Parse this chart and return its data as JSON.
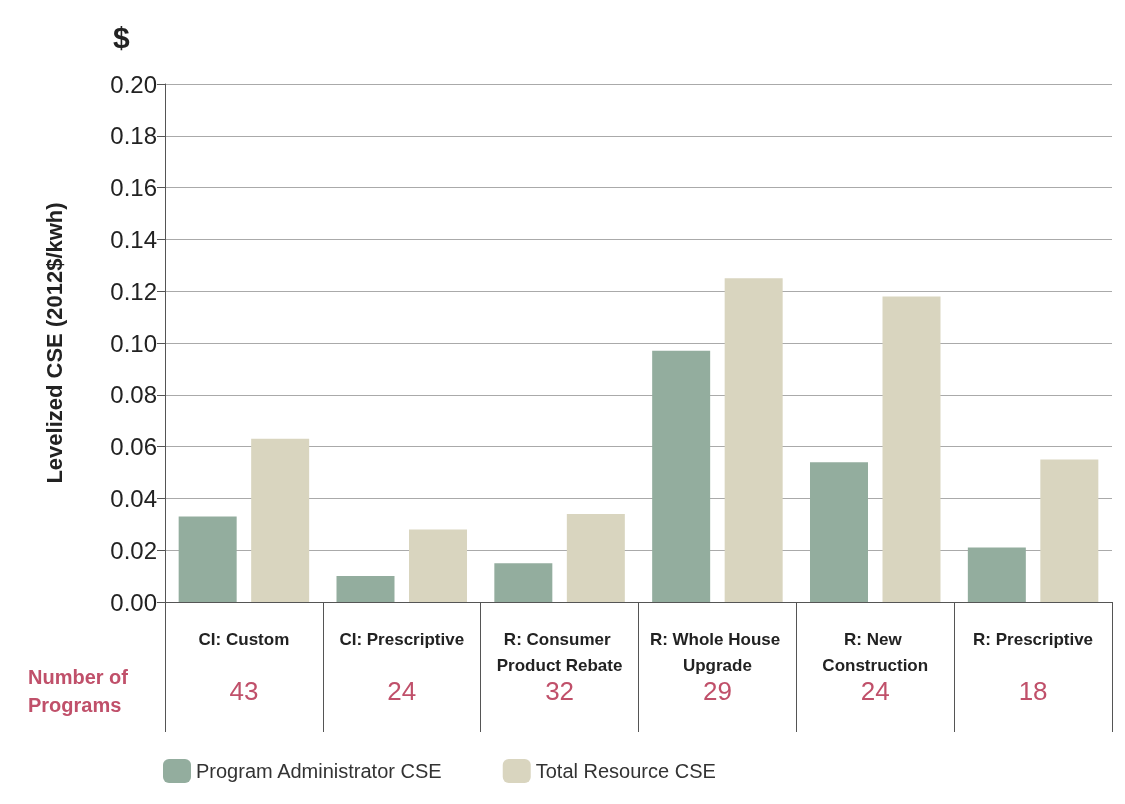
{
  "chart_data": {
    "type": "bar",
    "ylabel": "Levelized CSE (2012$/kwh)",
    "categories": [
      "CI: Custom",
      "CI: Prescriptive",
      "R: Consumer Product Rebate",
      "R: Whole House Upgrade",
      "R: New Construction",
      "R: Prescriptive"
    ],
    "series": [
      {
        "name": "Program Administrator CSE",
        "color": "#93ad9e",
        "values": [
          0.033,
          0.01,
          0.015,
          0.097,
          0.054,
          0.021
        ]
      },
      {
        "name": "Total Resource CSE",
        "color": "#d9d5bf",
        "values": [
          0.063,
          0.028,
          0.034,
          0.125,
          0.118,
          0.055
        ]
      }
    ],
    "ylim": [
      0,
      0.2
    ],
    "yticks": [
      {
        "value": 0,
        "label": "0.00"
      },
      {
        "value": 0.02,
        "label": "0.02"
      },
      {
        "value": 0.04,
        "label": "0.04"
      },
      {
        "value": 0.06,
        "label": "0.06"
      },
      {
        "value": 0.08,
        "label": "0.08"
      },
      {
        "value": 0.1,
        "label": "0.10"
      },
      {
        "value": 0.12,
        "label": "0.12"
      },
      {
        "value": 0.14,
        "label": "0.14"
      },
      {
        "value": 0.16,
        "label": "0.16"
      },
      {
        "value": 0.18,
        "label": "0.18"
      },
      {
        "value": 0.2,
        "label": "0.20"
      }
    ],
    "grid": "y",
    "legend": "bottom left",
    "annotations": [
      "$",
      "Number of Programs",
      "43",
      "24",
      "32",
      "29",
      "24",
      "18"
    ]
  }
}
